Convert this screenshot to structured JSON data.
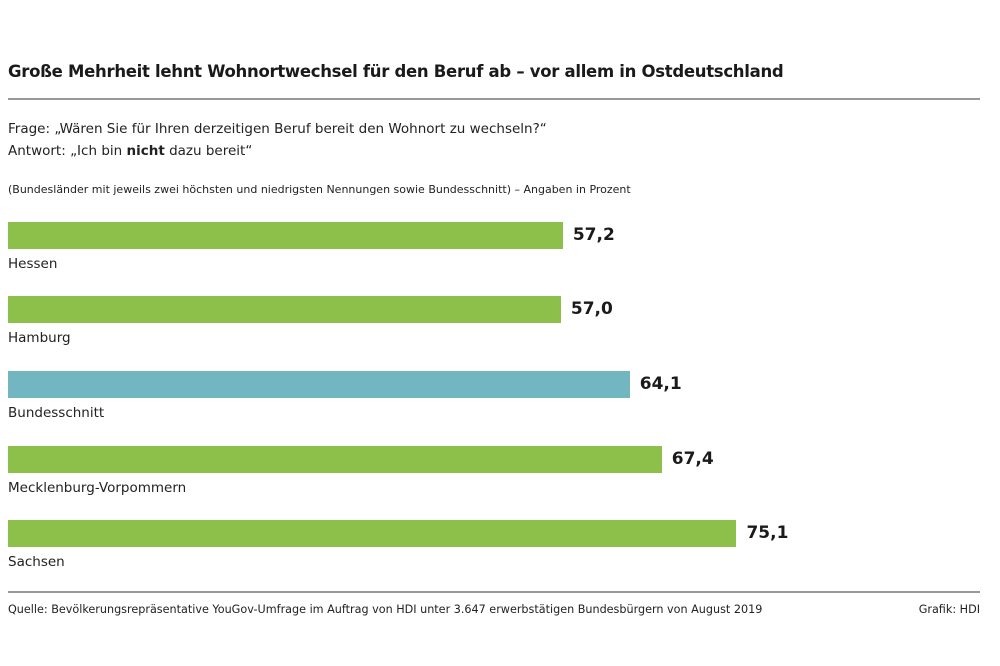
{
  "title": "Große Mehrheit lehnt Wohnortwechsel für den Beruf ab – vor allem in Ostdeutschland",
  "question": "Frage: „Wären Sie für Ihren derzeitigen Beruf bereit den Wohnort zu wechseln?“",
  "answer_pre": "Antwort: „Ich bin ",
  "answer_bold": "nicht",
  "answer_post": " dazu bereit“",
  "note": "(Bundesländer mit jeweils zwei höchsten und niedrigsten Nennungen sowie Bundesschnitt) – Angaben in Prozent",
  "source": "Quelle: Bevölkerungsrepräsentative YouGov-Umfrage im Auftrag von HDI unter 3.647 erwerbstätigen Bundesbürgern von August 2019",
  "credit": "Grafik: HDI",
  "colors": {
    "state": "#8dc04b",
    "average": "#72b6c1"
  },
  "chart_data": {
    "type": "bar",
    "orientation": "horizontal",
    "categories": [
      "Hessen",
      "Hamburg",
      "Bundesschnitt",
      "Mecklenburg-Vorpommern",
      "Sachsen"
    ],
    "values": [
      57.2,
      57.0,
      64.1,
      67.4,
      75.1
    ],
    "value_labels": [
      "57,2",
      "57,0",
      "64,1",
      "67,4",
      "75,1"
    ],
    "highlight": "Bundesschnitt",
    "xlim": [
      0,
      100
    ],
    "grid": false
  }
}
